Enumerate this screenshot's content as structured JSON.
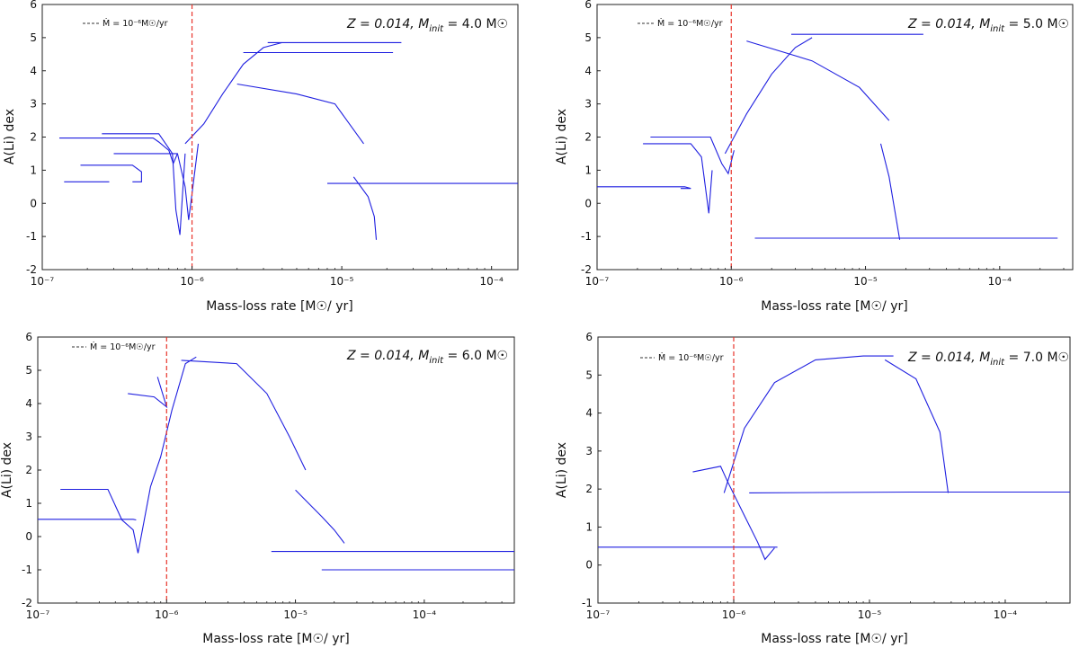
{
  "figure": {
    "caption_free": true
  },
  "chart_data": [
    {
      "type": "line",
      "title": "",
      "annotation": "Z = 0.014, M_init = 4.0 M☉",
      "annotation_parts": {
        "z": "Z = 0.014, M",
        "sub": "init",
        "rest": " = 4.0 M☉"
      },
      "xlabel": "Mass-loss rate [M☉/ yr]",
      "ylabel": "A(Li) dex",
      "xscale": "log",
      "xlim": [
        1e-07,
        0.00015
      ],
      "ylim": [
        -2,
        6
      ],
      "xticks": [
        {
          "value": 1e-07,
          "label": "10⁻⁷"
        },
        {
          "value": 1e-06,
          "label": "10⁻⁶"
        },
        {
          "value": 1e-05,
          "label": "10⁻⁵"
        },
        {
          "value": 0.0001,
          "label": "10⁻⁴"
        }
      ],
      "yticks": [
        -2,
        -1,
        0,
        1,
        2,
        3,
        4,
        5,
        6
      ],
      "reference_line": {
        "x": 1e-06,
        "color": "#e8332a",
        "style": "dashed"
      },
      "legend": {
        "label": "Ṁ = 10⁻⁶M☉/yr",
        "position": "top-left",
        "style": "dashed",
        "color": "#333333"
      },
      "series_color": "#1f1fe0",
      "series": [
        {
          "name": "trace-1",
          "x": [
            1.4e-07,
            2.8e-07,
            2.8e-07
          ],
          "y": [
            0.65,
            0.65,
            0.65
          ]
        },
        {
          "name": "trace-2",
          "x": [
            1.8e-07,
            4e-07,
            4.6e-07,
            4.6e-07,
            4e-07
          ],
          "y": [
            1.15,
            1.15,
            0.95,
            0.65,
            0.65
          ]
        },
        {
          "name": "trace-3",
          "x": [
            1.3e-07,
            5.5e-07,
            6e-07,
            7e-07,
            7.5e-07,
            8e-07
          ],
          "y": [
            1.97,
            1.97,
            1.85,
            1.6,
            1.2,
            1.5
          ]
        },
        {
          "name": "trace-4",
          "x": [
            2.5e-07,
            6e-07,
            7.4e-07,
            7.8e-07,
            8.3e-07,
            9e-07
          ],
          "y": [
            2.1,
            2.1,
            1.5,
            -0.2,
            -0.95,
            1.5
          ]
        },
        {
          "name": "trace-5",
          "x": [
            3e-07,
            8e-07,
            9e-07,
            9.5e-07,
            1e-06,
            1.1e-06
          ],
          "y": [
            1.5,
            1.5,
            0.5,
            -0.5,
            0.3,
            1.8
          ]
        },
        {
          "name": "trace-6",
          "x": [
            9e-07,
            1.2e-06,
            1.6e-06,
            2.2e-06,
            3e-06,
            4e-06
          ],
          "y": [
            1.8,
            2.4,
            3.3,
            4.2,
            4.7,
            4.85
          ]
        },
        {
          "name": "trace-7",
          "x": [
            3.2e-06,
            8e-06,
            1.5e-05,
            2.5e-05
          ],
          "y": [
            4.85,
            4.85,
            4.85,
            4.85
          ]
        },
        {
          "name": "trace-8",
          "x": [
            2.2e-06,
            6e-06,
            1.2e-05,
            2.2e-05
          ],
          "y": [
            4.55,
            4.55,
            4.55,
            4.55
          ]
        },
        {
          "name": "trace-9",
          "x": [
            2e-06,
            5e-06,
            9e-06,
            1.4e-05
          ],
          "y": [
            3.6,
            3.3,
            3.0,
            1.8
          ]
        },
        {
          "name": "trace-10",
          "x": [
            1.2e-05,
            1.5e-05,
            1.65e-05,
            1.7e-05
          ],
          "y": [
            0.8,
            0.2,
            -0.4,
            -1.1
          ]
        },
        {
          "name": "trace-11",
          "x": [
            8e-06,
            3e-05,
            8e-05,
            0.00015
          ],
          "y": [
            0.6,
            0.6,
            0.6,
            0.6
          ]
        }
      ]
    },
    {
      "type": "line",
      "annotation": "Z = 0.014, M_init = 5.0 M☉",
      "annotation_parts": {
        "z": "Z = 0.014, M",
        "sub": "init",
        "rest": " = 5.0 M☉"
      },
      "xlabel": "Mass-loss rate [M☉/ yr]",
      "ylabel": "A(Li) dex",
      "xscale": "log",
      "xlim": [
        1e-07,
        0.00035
      ],
      "ylim": [
        -2,
        6
      ],
      "xticks": [
        {
          "value": 1e-07,
          "label": "10⁻⁷"
        },
        {
          "value": 1e-06,
          "label": "10⁻⁶"
        },
        {
          "value": 1e-05,
          "label": "10⁻⁵"
        },
        {
          "value": 0.0001,
          "label": "10⁻⁴"
        }
      ],
      "yticks": [
        -2,
        -1,
        0,
        1,
        2,
        3,
        4,
        5,
        6
      ],
      "reference_line": {
        "x": 1e-06,
        "color": "#e8332a",
        "style": "dashed"
      },
      "legend": {
        "label": "Ṁ = 10⁻⁶M☉/yr",
        "position": "top-left",
        "style": "dashed",
        "color": "#333333"
      },
      "series_color": "#1f1fe0",
      "series": [
        {
          "name": "trace-1",
          "x": [
            1e-07,
            4.5e-07,
            5e-07,
            4.2e-07
          ],
          "y": [
            0.5,
            0.5,
            0.45,
            0.45
          ]
        },
        {
          "name": "trace-2",
          "x": [
            2.2e-07,
            5e-07,
            6e-07,
            6.8e-07,
            7.2e-07
          ],
          "y": [
            1.8,
            1.8,
            1.4,
            -0.3,
            1.0
          ]
        },
        {
          "name": "trace-3",
          "x": [
            2.5e-07,
            7e-07,
            8.5e-07,
            9.5e-07,
            1.05e-06
          ],
          "y": [
            2.0,
            2.0,
            1.2,
            0.9,
            1.6
          ]
        },
        {
          "name": "trace-4",
          "x": [
            9e-07,
            1.3e-06,
            2e-06,
            3e-06,
            4e-06
          ],
          "y": [
            1.5,
            2.7,
            3.9,
            4.7,
            5.0
          ]
        },
        {
          "name": "trace-5",
          "x": [
            2.8e-06,
            1e-05,
            2e-05,
            2.7e-05
          ],
          "y": [
            5.1,
            5.1,
            5.1,
            5.1
          ]
        },
        {
          "name": "trace-6",
          "x": [
            1.3e-06,
            4e-06,
            9e-06,
            1.5e-05
          ],
          "y": [
            4.9,
            4.3,
            3.5,
            2.5
          ]
        },
        {
          "name": "trace-7",
          "x": [
            1.3e-05,
            1.5e-05,
            1.7e-05,
            1.8e-05
          ],
          "y": [
            1.8,
            0.8,
            -0.5,
            -1.1
          ]
        },
        {
          "name": "trace-8",
          "x": [
            1.5e-06,
            2e-05,
            8e-05,
            0.00027
          ],
          "y": [
            -1.05,
            -1.05,
            -1.05,
            -1.05
          ]
        }
      ]
    },
    {
      "type": "line",
      "annotation": "Z = 0.014, M_init = 6.0 M☉",
      "annotation_parts": {
        "z": "Z = 0.014, M",
        "sub": "init",
        "rest": " = 6.0 M☉"
      },
      "xlabel": "Mass-loss rate [M☉/ yr]",
      "ylabel": "A(Li) dex",
      "xscale": "log",
      "xlim": [
        1e-07,
        0.0005
      ],
      "ylim": [
        -2,
        6
      ],
      "xticks": [
        {
          "value": 1e-07,
          "label": "10⁻⁷"
        },
        {
          "value": 1e-06,
          "label": "10⁻⁶"
        },
        {
          "value": 1e-05,
          "label": "10⁻⁵"
        },
        {
          "value": 0.0001,
          "label": "10⁻⁴"
        }
      ],
      "yticks": [
        -2,
        -1,
        0,
        1,
        2,
        3,
        4,
        5,
        6
      ],
      "reference_line": {
        "x": 1e-06,
        "color": "#e8332a",
        "style": "dashed"
      },
      "legend": {
        "label": "Ṁ = 10⁻⁶M☉/yr",
        "position": "top-left",
        "style": "dashed",
        "color": "#333333"
      },
      "series_color": "#1f1fe0",
      "series": [
        {
          "name": "trace-1",
          "x": [
            1e-07,
            5.5e-07,
            5.8e-07
          ],
          "y": [
            0.52,
            0.52,
            0.5
          ]
        },
        {
          "name": "trace-2",
          "x": [
            1.5e-07,
            3.5e-07,
            4.5e-07,
            5.5e-07,
            6e-07
          ],
          "y": [
            1.42,
            1.42,
            0.5,
            0.2,
            -0.5
          ]
        },
        {
          "name": "trace-3",
          "x": [
            6e-07,
            7.5e-07,
            9e-07,
            1.1e-06,
            1.4e-06,
            1.7e-06
          ],
          "y": [
            -0.5,
            1.5,
            2.4,
            3.8,
            5.2,
            5.4
          ]
        },
        {
          "name": "trace-4",
          "x": [
            5e-07,
            8e-07,
            1e-06,
            8.5e-07
          ],
          "y": [
            4.3,
            4.2,
            3.9,
            4.8
          ]
        },
        {
          "name": "trace-5",
          "x": [
            1.3e-06,
            3.5e-06,
            6e-06,
            9e-06,
            1.2e-05
          ],
          "y": [
            5.3,
            5.2,
            4.3,
            3.0,
            2.0
          ]
        },
        {
          "name": "trace-6",
          "x": [
            1e-05,
            1.6e-05,
            2e-05,
            2.4e-05
          ],
          "y": [
            1.4,
            0.6,
            0.2,
            -0.2
          ]
        },
        {
          "name": "trace-7",
          "x": [
            6.5e-06,
            5e-05,
            0.00015,
            0.0005
          ],
          "y": [
            -0.45,
            -0.45,
            -0.45,
            -0.45
          ]
        },
        {
          "name": "trace-8",
          "x": [
            1.6e-05,
            6e-05,
            0.0002,
            0.0005
          ],
          "y": [
            -1.0,
            -1.0,
            -1.0,
            -1.0
          ]
        }
      ]
    },
    {
      "type": "line",
      "annotation": "Z = 0.014, M_init = 7.0 M☉",
      "annotation_parts": {
        "z": "Z = 0.014, M",
        "sub": "init",
        "rest": " = 7.0 M☉"
      },
      "xlabel": "Mass-loss rate [M☉/ yr]",
      "ylabel": "A(Li) dex",
      "xscale": "log",
      "xlim": [
        1e-07,
        0.0003
      ],
      "ylim": [
        -1,
        6
      ],
      "xticks": [
        {
          "value": 1e-07,
          "label": "10⁻⁷"
        },
        {
          "value": 1e-06,
          "label": "10⁻⁶"
        },
        {
          "value": 1e-05,
          "label": "10⁻⁵"
        },
        {
          "value": 0.0001,
          "label": "10⁻⁴"
        }
      ],
      "yticks": [
        -1,
        0,
        1,
        2,
        3,
        4,
        5,
        6
      ],
      "reference_line": {
        "x": 1e-06,
        "color": "#e8332a",
        "style": "dashed"
      },
      "legend": {
        "label": "Ṁ = 10⁻⁶M☉/yr",
        "position": "top-left",
        "style": "dashed",
        "color": "#333333"
      },
      "series_color": "#1f1fe0",
      "series": [
        {
          "name": "trace-1",
          "x": [
            1e-07,
            1.9e-06,
            2.1e-06
          ],
          "y": [
            0.47,
            0.47,
            0.47
          ]
        },
        {
          "name": "trace-2",
          "x": [
            5e-07,
            8e-07,
            9e-07,
            1.2e-06,
            1.5e-06,
            1.7e-06,
            2e-06
          ],
          "y": [
            2.45,
            2.6,
            2.2,
            1.3,
            0.6,
            0.15,
            0.45
          ]
        },
        {
          "name": "trace-3",
          "x": [
            8.5e-07,
            1.2e-06,
            2e-06,
            4e-06,
            9e-06,
            1.5e-05
          ],
          "y": [
            1.9,
            3.6,
            4.8,
            5.4,
            5.5,
            5.5
          ]
        },
        {
          "name": "trace-4",
          "x": [
            1.3e-05,
            2.2e-05,
            3.3e-05,
            3.8e-05
          ],
          "y": [
            5.4,
            4.9,
            3.5,
            1.9
          ]
        },
        {
          "name": "trace-5",
          "x": [
            1.3e-06,
            2e-05,
            0.0001,
            0.0003
          ],
          "y": [
            1.9,
            1.92,
            1.92,
            1.92
          ]
        }
      ]
    }
  ]
}
